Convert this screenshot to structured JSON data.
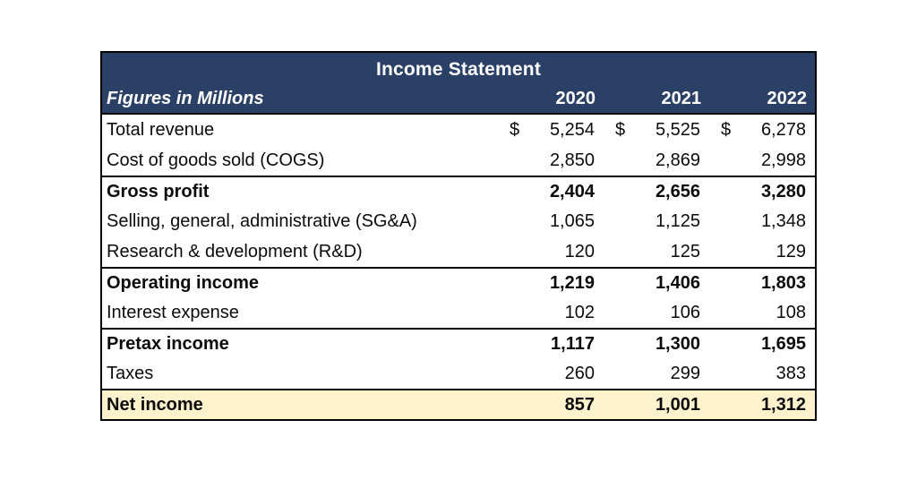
{
  "table": {
    "title": "Income Statement",
    "subtitle": "Figures in Millions",
    "currency_symbol": "$",
    "years": [
      "2020",
      "2021",
      "2022"
    ],
    "rows": [
      {
        "label": "Total revenue",
        "values": [
          "5,254",
          "5,525",
          "6,278"
        ],
        "currency": true,
        "bold": false,
        "top_border": false,
        "highlight": false
      },
      {
        "label": "Cost of goods sold (COGS)",
        "values": [
          "2,850",
          "2,869",
          "2,998"
        ],
        "currency": false,
        "bold": false,
        "top_border": false,
        "highlight": false
      },
      {
        "label": "Gross profit",
        "values": [
          "2,404",
          "2,656",
          "3,280"
        ],
        "currency": false,
        "bold": true,
        "top_border": true,
        "highlight": false
      },
      {
        "label": "Selling, general, administrative (SG&A)",
        "values": [
          "1,065",
          "1,125",
          "1,348"
        ],
        "currency": false,
        "bold": false,
        "top_border": false,
        "highlight": false
      },
      {
        "label": "Research & development (R&D)",
        "values": [
          "120",
          "125",
          "129"
        ],
        "currency": false,
        "bold": false,
        "top_border": false,
        "highlight": false
      },
      {
        "label": "Operating income",
        "values": [
          "1,219",
          "1,406",
          "1,803"
        ],
        "currency": false,
        "bold": true,
        "top_border": true,
        "highlight": false
      },
      {
        "label": "Interest expense",
        "values": [
          "102",
          "106",
          "108"
        ],
        "currency": false,
        "bold": false,
        "top_border": false,
        "highlight": false
      },
      {
        "label": "Pretax income",
        "values": [
          "1,117",
          "1,300",
          "1,695"
        ],
        "currency": false,
        "bold": true,
        "top_border": true,
        "highlight": false
      },
      {
        "label": "Taxes",
        "values": [
          "260",
          "299",
          "383"
        ],
        "currency": false,
        "bold": false,
        "top_border": false,
        "highlight": false
      },
      {
        "label": "Net income",
        "values": [
          "857",
          "1,001",
          "1,312"
        ],
        "currency": false,
        "bold": true,
        "top_border": true,
        "highlight": true
      }
    ],
    "colors": {
      "header_bg": "#2b4066",
      "header_text": "#ffffff",
      "highlight_bg": "#fdf2cc",
      "border": "#000000",
      "body_text": "#0b0b0b",
      "page_bg": "#ffffff"
    }
  },
  "chart_data": {
    "type": "table",
    "title": "Income Statement",
    "units": "Figures in Millions",
    "columns": [
      "Figures in Millions",
      "2020",
      "2021",
      "2022"
    ],
    "rows": [
      {
        "label": "Total revenue",
        "values": [
          5254,
          5525,
          6278
        ]
      },
      {
        "label": "Cost of goods sold (COGS)",
        "values": [
          2850,
          2869,
          2998
        ]
      },
      {
        "label": "Gross profit",
        "values": [
          2404,
          2656,
          3280
        ]
      },
      {
        "label": "Selling, general, administrative (SG&A)",
        "values": [
          1065,
          1125,
          1348
        ]
      },
      {
        "label": "Research & development (R&D)",
        "values": [
          120,
          125,
          129
        ]
      },
      {
        "label": "Operating income",
        "values": [
          1219,
          1406,
          1803
        ]
      },
      {
        "label": "Interest expense",
        "values": [
          102,
          106,
          108
        ]
      },
      {
        "label": "Pretax income",
        "values": [
          1117,
          1300,
          1695
        ]
      },
      {
        "label": "Taxes",
        "values": [
          260,
          299,
          383
        ]
      },
      {
        "label": "Net income",
        "values": [
          857,
          1001,
          1312
        ]
      }
    ]
  }
}
